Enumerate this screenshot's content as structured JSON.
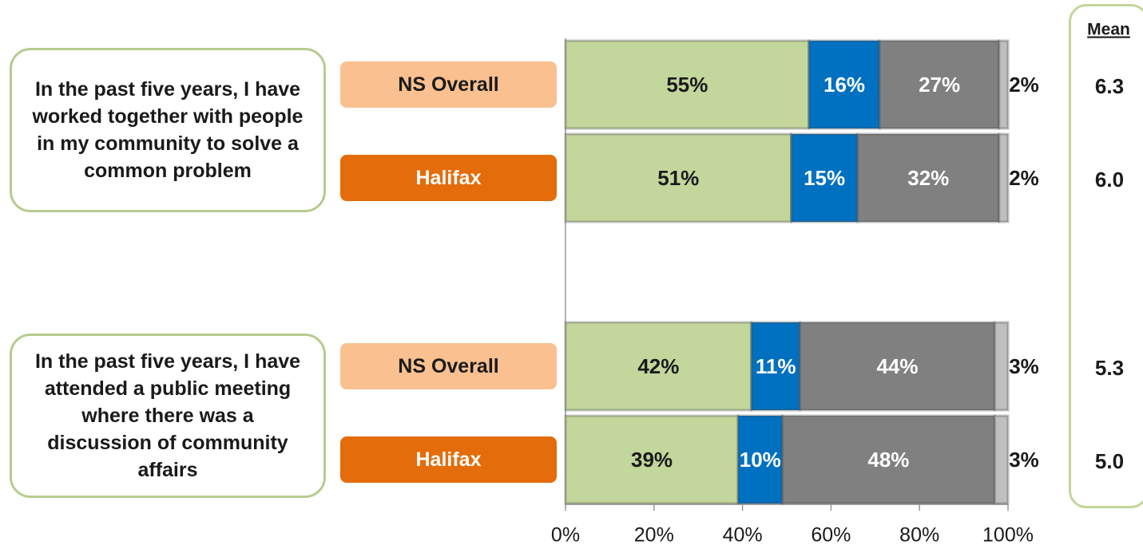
{
  "chart_data": {
    "type": "stacked-bar-horizontal",
    "statements": [
      "In the past five years, I have worked together with people in my community to solve a common problem",
      "In the past five years, I have attended a public meeting where there was a discussion of community affairs"
    ],
    "categories": [
      "NS Overall",
      "Halifax",
      "NS Overall",
      "Halifax"
    ],
    "category_colors": [
      "#fac090",
      "#e46c0a"
    ],
    "category_text_colors": [
      "#1a1a1a",
      "#ffffff"
    ],
    "series": [
      {
        "color": "#c3d69b",
        "label_color": "#1a1a1a",
        "values": [
          55,
          51,
          42,
          39
        ],
        "value_labels": [
          "55%",
          "51%",
          "42%",
          "39%"
        ]
      },
      {
        "color": "#0070c0",
        "label_color": "#ffffff",
        "values": [
          16,
          15,
          11,
          10
        ],
        "value_labels": [
          "16%",
          "15%",
          "11%",
          "10%"
        ]
      },
      {
        "color": "#808080",
        "label_color": "#ffffff",
        "values": [
          27,
          32,
          44,
          48
        ],
        "value_labels": [
          "27%",
          "32%",
          "44%",
          "48%"
        ]
      },
      {
        "color": "#bfbfbf",
        "label_color": "#1a1a1a",
        "values": [
          2,
          2,
          3,
          3
        ],
        "value_labels": [
          "2%",
          "2%",
          "3%",
          "3%"
        ]
      }
    ],
    "xlim": [
      0,
      100
    ],
    "xticks": [
      {
        "value": 0,
        "label": "0%"
      },
      {
        "value": 20,
        "label": "20%"
      },
      {
        "value": 40,
        "label": "40%"
      },
      {
        "value": 60,
        "label": "60%"
      },
      {
        "value": 80,
        "label": "80%"
      },
      {
        "value": 100,
        "label": "100%"
      }
    ],
    "mean_title": "Mean",
    "means": [
      "6.3",
      "6.0",
      "5.3",
      "5.0"
    ]
  }
}
